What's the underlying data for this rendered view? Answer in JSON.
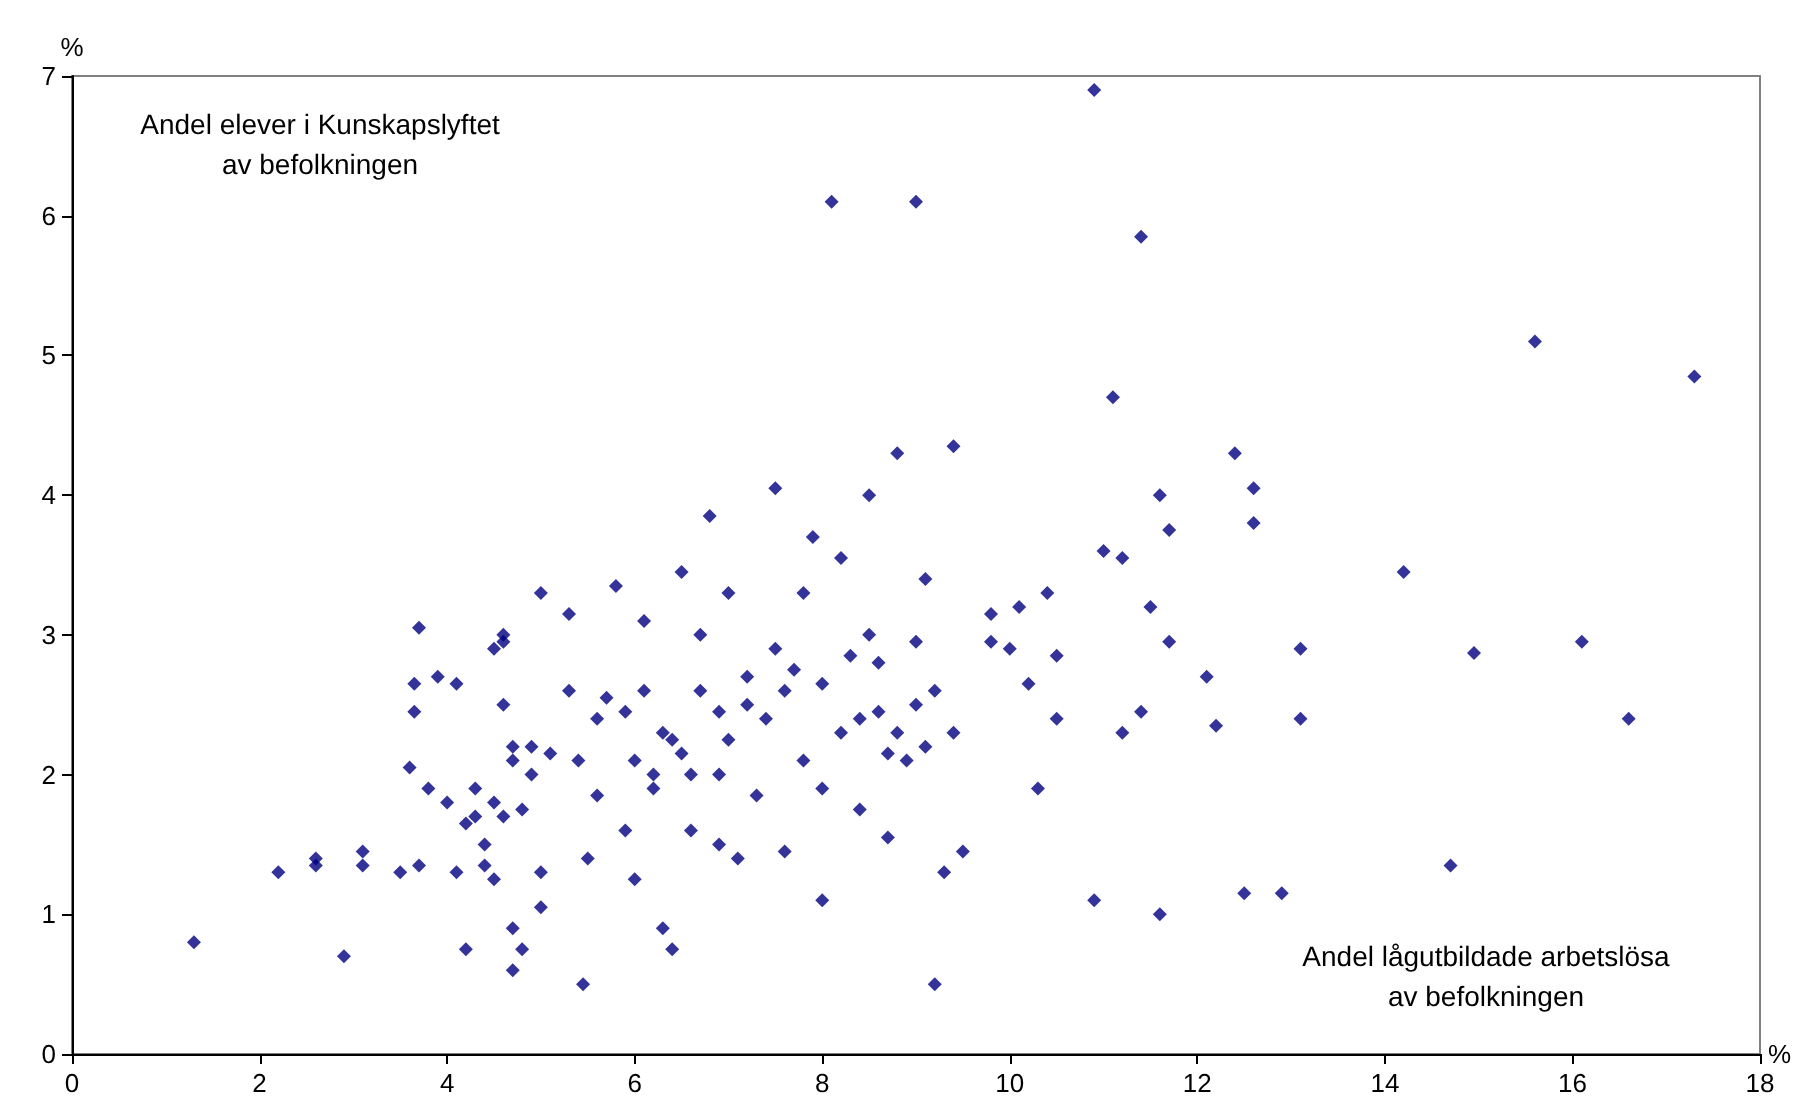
{
  "chart_data": {
    "type": "scatter",
    "xlabel": "%",
    "ylabel": "%",
    "annotations": [
      "Andel elever i Kunskapslyftet\nav befolkningen",
      "Andel lågutbildade arbetslösa\nav befolkningen"
    ],
    "xlim": [
      0,
      18
    ],
    "xticks": [
      0,
      2,
      4,
      6,
      8,
      10,
      12,
      14,
      16,
      18
    ],
    "ylim": [
      0,
      7
    ],
    "yticks": [
      0,
      1,
      2,
      3,
      4,
      5,
      6,
      7
    ],
    "grid": false,
    "marker": "diamond",
    "series": [
      {
        "color": "#000080",
        "x": [
          1.3,
          2.2,
          2.6,
          2.6,
          2.9,
          3.1,
          3.1,
          3.5,
          3.7,
          3.6,
          3.65,
          3.65,
          3.7,
          3.8,
          3.9,
          4.0,
          4.1,
          4.1,
          4.2,
          4.2,
          4.3,
          4.3,
          4.4,
          4.4,
          4.5,
          4.5,
          4.6,
          4.6,
          4.6,
          4.5,
          4.6,
          4.7,
          4.7,
          4.7,
          4.7,
          4.8,
          4.8,
          4.9,
          4.9,
          5.0,
          5.0,
          5.0,
          5.1,
          5.3,
          5.3,
          5.4,
          5.45,
          5.5,
          5.6,
          5.6,
          5.7,
          5.8,
          5.9,
          6.0,
          6.0,
          6.1,
          6.1,
          6.2,
          6.3,
          6.4,
          6.4,
          6.5,
          6.5,
          6.6,
          6.7,
          6.7,
          6.8,
          6.9,
          7.0,
          7.1,
          7.2,
          7.3,
          7.5,
          7.5,
          7.6,
          7.7,
          7.8,
          7.9,
          8.0,
          8.0,
          8.1,
          8.2,
          8.2,
          8.3,
          8.4,
          8.5,
          8.6,
          8.7,
          8.7,
          8.8,
          8.9,
          9.0,
          9.0,
          9.1,
          9.2,
          9.2,
          9.3,
          9.4,
          9.4,
          9.5,
          9.8,
          9.8,
          10.0,
          10.1,
          10.2,
          10.3,
          10.4,
          10.5,
          10.5,
          10.9,
          10.9,
          11.0,
          11.1,
          11.2,
          11.2,
          11.4,
          11.4,
          11.5,
          11.6,
          11.6,
          11.7,
          11.7,
          12.1,
          12.2,
          12.4,
          12.5,
          12.6,
          12.6,
          12.9,
          13.1,
          13.1,
          14.2,
          14.7,
          14.95,
          15.6,
          16.1,
          16.6,
          17.3,
          6.2,
          6.6,
          7.0,
          7.4,
          7.6,
          8.4,
          8.8,
          9.1,
          6.9,
          7.2,
          8.0,
          8.6,
          6.3,
          5.9,
          7.8,
          8.5,
          6.9,
          9.0
        ],
        "values": [
          0.8,
          1.3,
          1.35,
          1.4,
          0.7,
          1.35,
          1.45,
          1.3,
          1.35,
          2.05,
          2.45,
          2.65,
          3.05,
          1.9,
          2.7,
          1.8,
          1.3,
          2.65,
          0.75,
          1.65,
          1.9,
          1.7,
          1.5,
          1.35,
          2.9,
          1.25,
          3.0,
          2.5,
          2.95,
          1.8,
          1.7,
          2.2,
          2.1,
          0.9,
          0.6,
          0.75,
          1.75,
          2.0,
          2.2,
          1.3,
          1.05,
          3.3,
          2.15,
          3.15,
          2.6,
          2.1,
          0.5,
          1.4,
          2.4,
          1.85,
          2.55,
          3.35,
          2.45,
          1.25,
          2.1,
          2.6,
          3.1,
          2.0,
          0.9,
          2.25,
          0.75,
          3.45,
          2.15,
          1.6,
          2.6,
          3.0,
          3.85,
          2.45,
          3.3,
          1.4,
          2.5,
          1.85,
          4.05,
          2.9,
          1.45,
          2.75,
          2.1,
          3.7,
          2.65,
          1.1,
          6.1,
          2.3,
          3.55,
          2.85,
          1.75,
          4.0,
          2.45,
          2.15,
          1.55,
          4.3,
          2.1,
          6.1,
          2.95,
          3.4,
          0.5,
          2.6,
          1.3,
          4.35,
          2.3,
          1.45,
          3.15,
          2.95,
          2.9,
          3.2,
          2.65,
          1.9,
          3.3,
          2.4,
          2.85,
          1.1,
          6.9,
          3.6,
          4.7,
          3.55,
          2.3,
          5.85,
          2.45,
          3.2,
          4.0,
          1.0,
          3.75,
          2.95,
          2.7,
          2.35,
          4.3,
          1.15,
          4.05,
          3.8,
          1.15,
          2.9,
          2.4,
          3.45,
          1.35,
          2.87,
          5.1,
          2.95,
          2.4,
          4.85,
          1.9,
          2.0,
          2.25,
          2.4,
          2.6,
          2.4,
          2.3,
          2.2,
          2.0,
          2.7,
          1.9,
          2.8,
          2.3,
          1.6,
          3.3,
          3.0,
          1.5,
          2.5
        ]
      }
    ]
  }
}
